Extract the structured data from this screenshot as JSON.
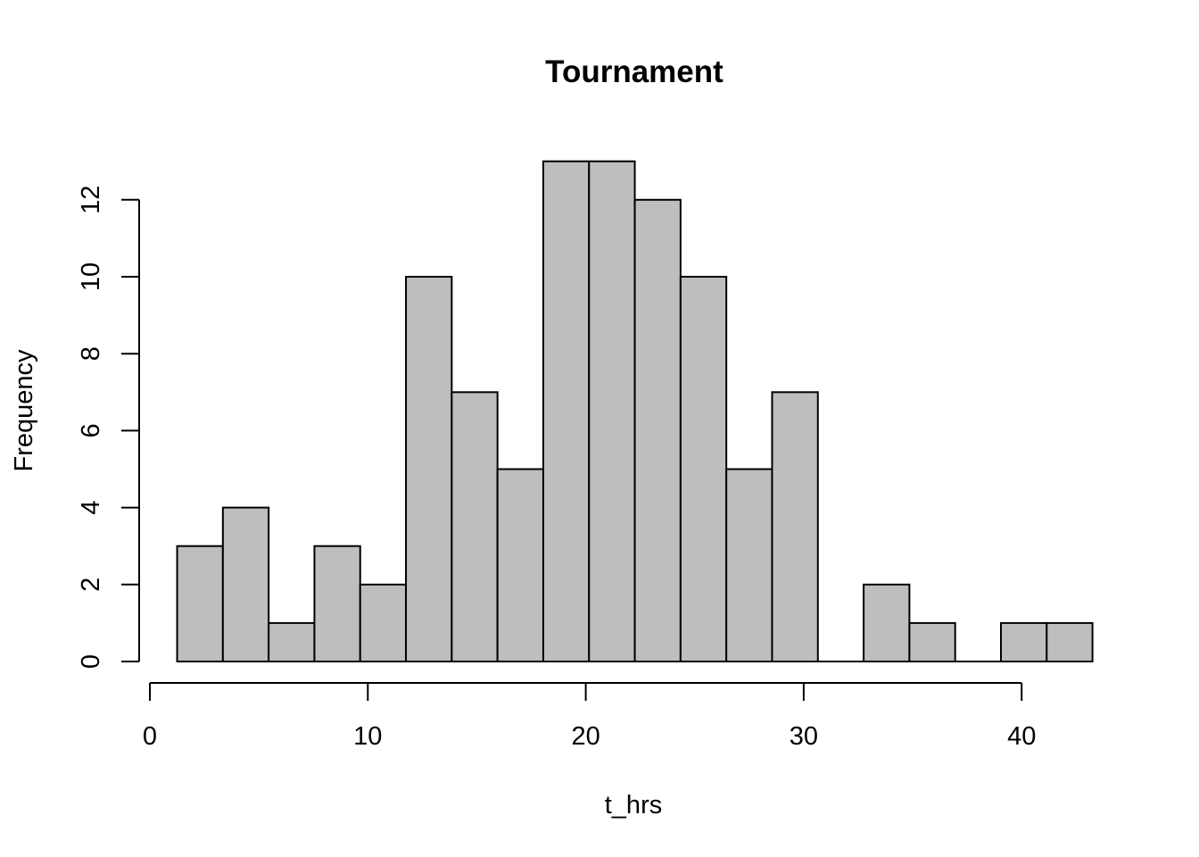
{
  "chart_data": {
    "type": "bar",
    "title": "Tournament",
    "xlabel": "t_hrs",
    "ylabel": "Frequency",
    "bin_edges": [
      1.25,
      3.35,
      5.45,
      7.55,
      9.65,
      11.75,
      13.85,
      15.95,
      18.05,
      20.15,
      22.25,
      24.35,
      26.45,
      28.55,
      30.65,
      32.75,
      34.85,
      36.95,
      39.05,
      41.15,
      43.25
    ],
    "values": [
      3,
      4,
      1,
      3,
      2,
      10,
      7,
      5,
      13,
      13,
      12,
      10,
      5,
      7,
      0,
      2,
      1,
      0,
      1,
      1
    ],
    "xlim": [
      0,
      43.25
    ],
    "ylim": [
      0,
      13
    ],
    "x_ticks": [
      0,
      10,
      20,
      30,
      40
    ],
    "y_ticks": [
      0,
      2,
      4,
      6,
      8,
      10,
      12
    ],
    "bar_color": "#bebebe",
    "grid": false,
    "legend": "none"
  }
}
